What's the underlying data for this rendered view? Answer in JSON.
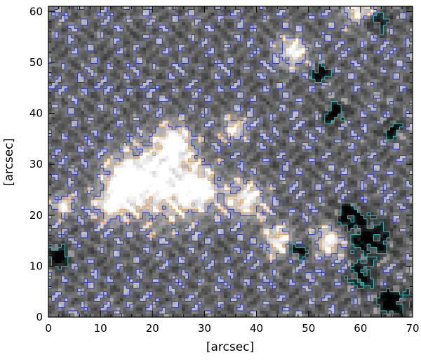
{
  "chart_data": {
    "type": "heatmap",
    "title": "",
    "xlabel": "[arcsec]",
    "ylabel": "[arcsec]",
    "xlim": [
      0,
      70
    ],
    "ylim": [
      0,
      61
    ],
    "x_ticks": [
      0,
      10,
      20,
      30,
      40,
      50,
      60,
      70
    ],
    "y_ticks": [
      0,
      10,
      20,
      30,
      40,
      50,
      60
    ],
    "x_tick_labels": [
      "0",
      "10",
      "20",
      "30",
      "40",
      "50",
      "60",
      "70"
    ],
    "y_tick_labels": [
      "0",
      "10",
      "20",
      "30",
      "40",
      "50",
      "60"
    ],
    "colormap": "grayscale",
    "colors": {
      "background_gray": "#707070",
      "positive_polarity": "#ffffff",
      "negative_polarity": "#000000",
      "contour_blue": "#2233dd",
      "contour_orange": "#f0a040",
      "contour_cyan": "#22cccc"
    },
    "bright_regions": [
      {
        "x": 22,
        "y": 26,
        "r": 5
      },
      {
        "x": 15,
        "y": 27,
        "r": 3
      },
      {
        "x": 29,
        "y": 25,
        "r": 2.5
      },
      {
        "x": 24,
        "y": 34,
        "r": 2.5
      },
      {
        "x": 12,
        "y": 22,
        "r": 2
      },
      {
        "x": 38,
        "y": 23,
        "r": 2.5
      },
      {
        "x": 44,
        "y": 15,
        "r": 2
      },
      {
        "x": 54,
        "y": 15,
        "r": 2
      },
      {
        "x": 60,
        "y": 61,
        "r": 2.5
      },
      {
        "x": 47,
        "y": 52,
        "r": 2
      },
      {
        "x": 3,
        "y": 22,
        "r": 1.5
      },
      {
        "x": 36,
        "y": 37,
        "r": 1.5
      }
    ],
    "dark_regions": [
      {
        "x": 62,
        "y": 15,
        "r": 2.5
      },
      {
        "x": 58,
        "y": 20,
        "r": 1.8
      },
      {
        "x": 66,
        "y": 3,
        "r": 2
      },
      {
        "x": 60,
        "y": 8,
        "r": 1.5
      },
      {
        "x": 55,
        "y": 40,
        "r": 1.5
      },
      {
        "x": 63,
        "y": 58,
        "r": 1.5
      },
      {
        "x": 2,
        "y": 12,
        "r": 1.4
      },
      {
        "x": 48,
        "y": 13,
        "r": 1.2
      },
      {
        "x": 52,
        "y": 48,
        "r": 1.2
      },
      {
        "x": 66,
        "y": 37,
        "r": 1.2
      }
    ],
    "contours": {
      "blue_level": 0.66,
      "orange_level": 0.82,
      "cyan_level": 0.2
    }
  }
}
